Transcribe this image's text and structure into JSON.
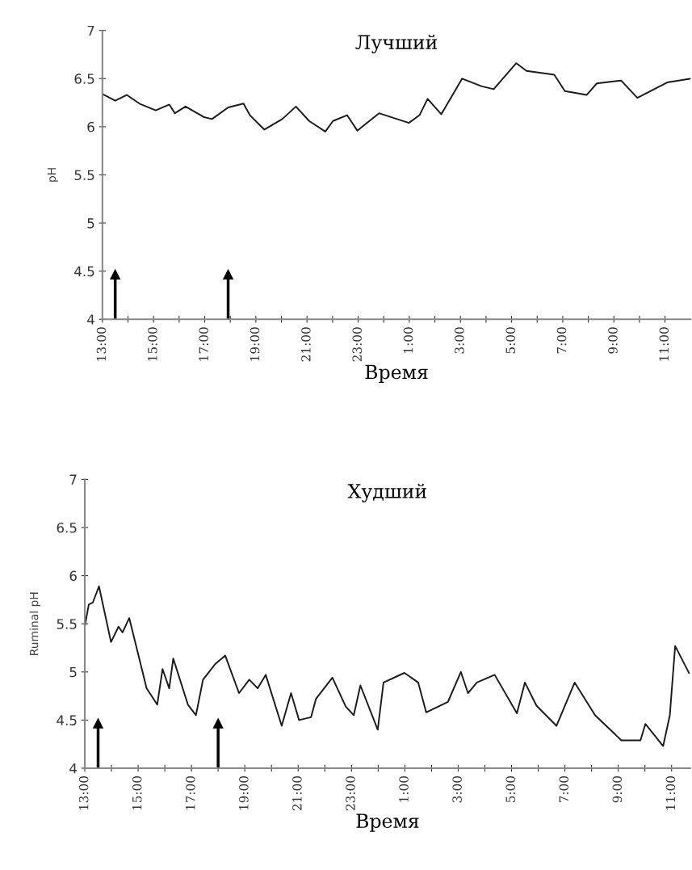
{
  "chart_data": [
    {
      "type": "line",
      "title": "Лучший",
      "xlabel": "Время",
      "ylabel": "pH",
      "x": [
        "2000-01-01T13:00",
        "2000-01-01T13:30",
        "2000-01-01T13:57",
        "2000-01-01T14:27",
        "2000-01-01T15:05",
        "2000-01-01T15:37",
        "2000-01-01T15:50",
        "2000-01-01T16:15",
        "2000-01-01T16:58",
        "2000-01-01T17:17",
        "2000-01-01T17:55",
        "2000-01-01T18:31",
        "2000-01-01T18:46",
        "2000-01-01T19:20",
        "2000-01-01T20:02",
        "2000-01-01T20:34",
        "2000-01-01T21:05",
        "2000-01-01T21:43",
        "2000-01-01T22:01",
        "2000-01-01T22:34",
        "2000-01-01T22:58",
        "2000-01-01T23:49",
        "2000-01-02T00:59",
        "2000-01-02T01:24",
        "2000-01-02T01:43",
        "2000-01-02T02:15",
        "2000-01-02T03:04",
        "2000-01-02T03:50",
        "2000-01-02T04:18",
        "2000-01-02T05:11",
        "2000-01-02T05:35",
        "2000-01-02T06:40",
        "2000-01-02T07:05",
        "2000-01-02T07:56",
        "2000-01-02T08:20",
        "2000-01-02T09:17",
        "2000-01-02T09:55",
        "2000-01-02T11:05",
        "2000-01-02T12:00"
      ],
      "series": [
        {
          "color": "#1a1a1a",
          "values": [
            6.34,
            6.27,
            6.33,
            6.24,
            6.17,
            6.23,
            6.14,
            6.21,
            6.1,
            6.08,
            6.2,
            6.24,
            6.12,
            5.97,
            6.08,
            6.21,
            6.06,
            5.95,
            6.06,
            6.12,
            5.96,
            6.14,
            6.04,
            6.12,
            6.29,
            6.13,
            6.5,
            6.42,
            6.39,
            6.66,
            6.58,
            6.54,
            6.37,
            6.33,
            6.45,
            6.48,
            6.3,
            6.46,
            6.5
          ]
        }
      ],
      "xlim": [
        "2000-01-01T13:00",
        "2000-01-02T12:00"
      ],
      "ylim": [
        4,
        7
      ],
      "yticks": [
        4,
        4.5,
        5,
        5.5,
        6,
        6.5,
        7
      ],
      "xticks": [
        {
          "value": "2000-01-01T13:00",
          "label": "13:00"
        },
        {
          "value": "2000-01-01T14:00",
          "label": null
        },
        {
          "value": "2000-01-01T15:00",
          "label": "15:00"
        },
        {
          "value": "2000-01-01T16:00",
          "label": null
        },
        {
          "value": "2000-01-01T17:00",
          "label": "17:00"
        },
        {
          "value": "2000-01-01T18:00",
          "label": null
        },
        {
          "value": "2000-01-01T19:00",
          "label": "19:00"
        },
        {
          "value": "2000-01-01T20:00",
          "label": null
        },
        {
          "value": "2000-01-01T21:00",
          "label": "21:00"
        },
        {
          "value": "2000-01-01T22:00",
          "label": null
        },
        {
          "value": "2000-01-01T23:00",
          "label": "23:00"
        },
        {
          "value": "2000-01-02T00:00",
          "label": null
        },
        {
          "value": "2000-01-02T01:00",
          "label": "1:00"
        },
        {
          "value": "2000-01-02T02:00",
          "label": null
        },
        {
          "value": "2000-01-02T03:00",
          "label": "3:00"
        },
        {
          "value": "2000-01-02T04:00",
          "label": null
        },
        {
          "value": "2000-01-02T05:00",
          "label": "5:00"
        },
        {
          "value": "2000-01-02T06:00",
          "label": null
        },
        {
          "value": "2000-01-02T07:00",
          "label": "7:00"
        },
        {
          "value": "2000-01-02T08:00",
          "label": null
        },
        {
          "value": "2000-01-02T09:00",
          "label": "9:00"
        },
        {
          "value": "2000-01-02T10:00",
          "label": null
        },
        {
          "value": "2000-01-02T11:00",
          "label": "11:00"
        }
      ],
      "ref_lines": [
        {
          "axis": "x",
          "value": "2000-01-01T13:30",
          "color": "#000000"
        },
        {
          "axis": "x",
          "value": "2000-01-01T17:55",
          "color": "#000000"
        }
      ],
      "grid": false,
      "legend": false,
      "marker": "none",
      "line_style": "solid"
    },
    {
      "type": "line",
      "title": "Худший",
      "xlabel": "Время",
      "ylabel": "Ruminal pH",
      "x": [
        "2000-01-01T13:00",
        "2000-01-01T13:09",
        "2000-01-01T13:18",
        "2000-01-01T13:32",
        "2000-01-01T13:59",
        "2000-01-01T14:16",
        "2000-01-01T14:25",
        "2000-01-01T14:40",
        "2000-01-01T15:10",
        "2000-01-01T15:19",
        "2000-01-01T15:43",
        "2000-01-01T15:55",
        "2000-01-01T16:10",
        "2000-01-01T16:19",
        "2000-01-01T16:52",
        "2000-01-01T17:10",
        "2000-01-01T17:26",
        "2000-01-01T17:53",
        "2000-01-01T18:16",
        "2000-01-01T18:47",
        "2000-01-01T19:10",
        "2000-01-01T19:29",
        "2000-01-01T19:47",
        "2000-01-01T20:23",
        "2000-01-01T20:44",
        "2000-01-01T21:02",
        "2000-01-01T21:29",
        "2000-01-01T21:40",
        "2000-01-01T22:17",
        "2000-01-01T22:47",
        "2000-01-01T23:05",
        "2000-01-01T23:20",
        "2000-01-01T23:59",
        "2000-01-02T00:12",
        "2000-01-02T00:59",
        "2000-01-02T01:30",
        "2000-01-02T01:48",
        "2000-01-02T02:37",
        "2000-01-02T03:06",
        "2000-01-02T03:22",
        "2000-01-02T03:42",
        "2000-01-02T04:22",
        "2000-01-02T05:12",
        "2000-01-02T05:30",
        "2000-01-02T05:56",
        "2000-01-02T06:41",
        "2000-01-02T07:22",
        "2000-01-02T08:08",
        "2000-01-02T09:07",
        "2000-01-02T09:50",
        "2000-01-02T10:01",
        "2000-01-02T10:41",
        "2000-01-02T10:56",
        "2000-01-02T11:08",
        "2000-01-02T11:39"
      ],
      "series": [
        {
          "color": "#1a1a1a",
          "values": [
            5.47,
            5.7,
            5.72,
            5.89,
            5.31,
            5.47,
            5.41,
            5.56,
            5.0,
            4.83,
            4.66,
            5.03,
            4.83,
            5.14,
            4.66,
            4.55,
            4.92,
            5.08,
            5.17,
            4.78,
            4.92,
            4.83,
            4.97,
            4.44,
            4.78,
            4.5,
            4.53,
            4.72,
            4.94,
            4.64,
            4.55,
            4.86,
            4.4,
            4.89,
            4.99,
            4.89,
            4.58,
            4.69,
            5.0,
            4.78,
            4.89,
            4.97,
            4.57,
            4.89,
            4.65,
            4.44,
            4.89,
            4.55,
            4.29,
            4.29,
            4.46,
            4.23,
            4.55,
            5.27,
            4.99
          ]
        }
      ],
      "xlim": [
        "2000-01-01T13:00",
        "2000-01-02T11:42"
      ],
      "ylim": [
        4,
        7
      ],
      "yticks": [
        4,
        4.5,
        5,
        5.5,
        6,
        6.5,
        7
      ],
      "xticks": [
        {
          "value": "2000-01-01T13:00",
          "label": "13:00"
        },
        {
          "value": "2000-01-01T14:00",
          "label": null
        },
        {
          "value": "2000-01-01T15:00",
          "label": "15:00"
        },
        {
          "value": "2000-01-01T16:00",
          "label": null
        },
        {
          "value": "2000-01-01T17:00",
          "label": "17:00"
        },
        {
          "value": "2000-01-01T18:00",
          "label": null
        },
        {
          "value": "2000-01-01T19:00",
          "label": "19:00"
        },
        {
          "value": "2000-01-01T20:00",
          "label": null
        },
        {
          "value": "2000-01-01T21:00",
          "label": "21:00"
        },
        {
          "value": "2000-01-01T22:00",
          "label": null
        },
        {
          "value": "2000-01-01T23:00",
          "label": "23:00"
        },
        {
          "value": "2000-01-02T00:00",
          "label": null
        },
        {
          "value": "2000-01-02T01:00",
          "label": "1:00"
        },
        {
          "value": "2000-01-02T02:00",
          "label": null
        },
        {
          "value": "2000-01-02T03:00",
          "label": "3:00"
        },
        {
          "value": "2000-01-02T04:00",
          "label": null
        },
        {
          "value": "2000-01-02T05:00",
          "label": "5:00"
        },
        {
          "value": "2000-01-02T06:00",
          "label": null
        },
        {
          "value": "2000-01-02T07:00",
          "label": "7:00"
        },
        {
          "value": "2000-01-02T08:00",
          "label": null
        },
        {
          "value": "2000-01-02T09:00",
          "label": "9:00"
        },
        {
          "value": "2000-01-02T10:00",
          "label": null
        },
        {
          "value": "2000-01-02T11:00",
          "label": "11:00"
        }
      ],
      "ref_lines": [
        {
          "axis": "x",
          "value": "2000-01-01T13:30",
          "color": "#000000"
        },
        {
          "axis": "x",
          "value": "2000-01-01T18:00",
          "color": "#000000"
        }
      ],
      "grid": false,
      "legend": false,
      "marker": "none",
      "line_style": "solid"
    }
  ]
}
